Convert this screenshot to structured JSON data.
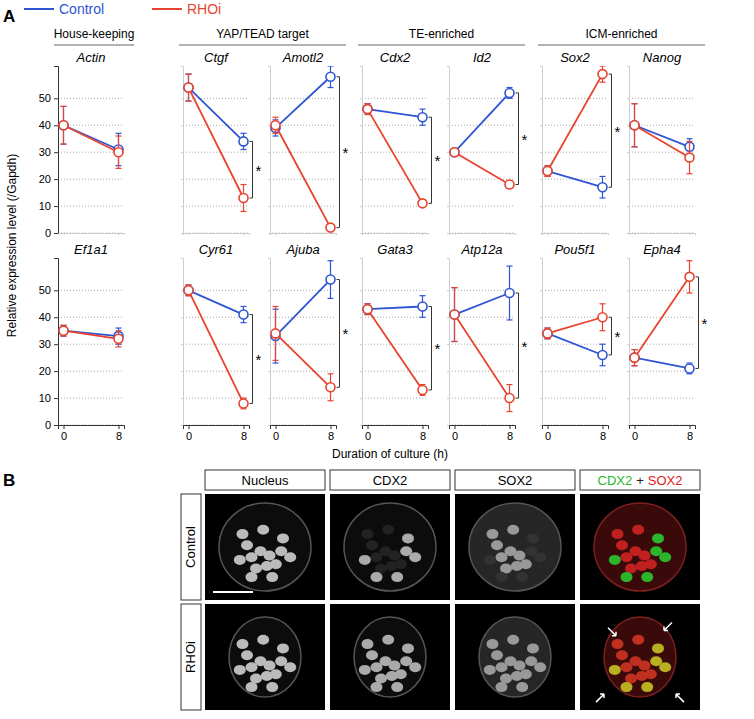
{
  "figure": {
    "panel_labels": [
      "A",
      "B"
    ],
    "y_label": "Relative expression level (/Gapdh)",
    "x_label": "Duration of culture (h)",
    "groups": [
      "House-keeping",
      "YAP/TEAD target",
      "TE-enriched",
      "ICM-enriched"
    ]
  },
  "chart_data": [
    {
      "type": "line",
      "title": "Actin",
      "x": [
        0,
        8
      ],
      "xlim": [
        -0.8,
        8.8
      ],
      "xticks": [
        0,
        8
      ],
      "ylim": [
        0,
        62
      ],
      "yticks": [
        0,
        10,
        20,
        30,
        40,
        50
      ],
      "grid": true,
      "tick_labels": "y",
      "marker": "circle",
      "series": [
        {
          "name": "Control",
          "color": "#2f55d4",
          "values": [
            40,
            31
          ],
          "errors": [
            7,
            6
          ]
        },
        {
          "name": "RHOi",
          "color": "#e8432e",
          "values": [
            40,
            30
          ],
          "errors": [
            7,
            6
          ]
        }
      ]
    },
    {
      "type": "line",
      "title": "Ctgf",
      "x": [
        0,
        8
      ],
      "xlim": [
        -0.8,
        8.8
      ],
      "xticks": [
        0,
        8
      ],
      "ylim": [
        0,
        62
      ],
      "yticks": [
        0,
        10,
        20,
        30,
        40,
        50
      ],
      "grid": true,
      "tick_labels": false,
      "marker": "circle",
      "annotation": "*",
      "series": [
        {
          "name": "Control",
          "color": "#2f55d4",
          "values": [
            54,
            34
          ],
          "errors": [
            5,
            3
          ]
        },
        {
          "name": "RHOi",
          "color": "#e8432e",
          "values": [
            54,
            13
          ],
          "errors": [
            5,
            5
          ]
        }
      ]
    },
    {
      "type": "line",
      "title": "Amotl2",
      "x": [
        0,
        8
      ],
      "xlim": [
        -0.8,
        8.8
      ],
      "xticks": [
        0,
        8
      ],
      "ylim": [
        0,
        62
      ],
      "yticks": [
        0,
        10,
        20,
        30,
        40,
        50
      ],
      "grid": true,
      "tick_labels": false,
      "marker": "circle",
      "annotation": "*",
      "series": [
        {
          "name": "Control",
          "color": "#2f55d4",
          "values": [
            39,
            58
          ],
          "errors": [
            3,
            4
          ]
        },
        {
          "name": "RHOi",
          "color": "#e8432e",
          "values": [
            40,
            2
          ],
          "errors": [
            3,
            1
          ]
        }
      ]
    },
    {
      "type": "line",
      "title": "Cdx2",
      "x": [
        0,
        8
      ],
      "xlim": [
        -0.8,
        8.8
      ],
      "xticks": [
        0,
        8
      ],
      "ylim": [
        0,
        62
      ],
      "yticks": [
        0,
        10,
        20,
        30,
        40,
        50
      ],
      "grid": true,
      "tick_labels": false,
      "marker": "circle",
      "annotation": "*",
      "series": [
        {
          "name": "Control",
          "color": "#2f55d4",
          "values": [
            46,
            43
          ],
          "errors": [
            2,
            3
          ]
        },
        {
          "name": "RHOi",
          "color": "#e8432e",
          "values": [
            46,
            11
          ],
          "errors": [
            2,
            1
          ]
        }
      ]
    },
    {
      "type": "line",
      "title": "Id2",
      "x": [
        0,
        8
      ],
      "xlim": [
        -0.8,
        8.8
      ],
      "xticks": [
        0,
        8
      ],
      "ylim": [
        0,
        62
      ],
      "yticks": [
        0,
        10,
        20,
        30,
        40,
        50
      ],
      "grid": true,
      "tick_labels": false,
      "marker": "circle",
      "annotation": "*",
      "series": [
        {
          "name": "Control",
          "color": "#2f55d4",
          "values": [
            30,
            52
          ],
          "errors": [
            1,
            2
          ]
        },
        {
          "name": "RHOi",
          "color": "#e8432e",
          "values": [
            30,
            18
          ],
          "errors": [
            1,
            1
          ]
        }
      ]
    },
    {
      "type": "line",
      "title": "Sox2",
      "x": [
        0,
        8
      ],
      "xlim": [
        -0.8,
        8.8
      ],
      "xticks": [
        0,
        8
      ],
      "ylim": [
        0,
        62
      ],
      "yticks": [
        0,
        10,
        20,
        30,
        40,
        50
      ],
      "grid": true,
      "tick_labels": false,
      "marker": "circle",
      "annotation": "*",
      "series": [
        {
          "name": "Control",
          "color": "#2f55d4",
          "values": [
            23,
            17
          ],
          "errors": [
            2,
            4
          ]
        },
        {
          "name": "RHOi",
          "color": "#e8432e",
          "values": [
            23,
            59
          ],
          "errors": [
            2,
            3
          ]
        }
      ]
    },
    {
      "type": "line",
      "title": "Nanog",
      "x": [
        0,
        8
      ],
      "xlim": [
        -0.8,
        8.8
      ],
      "xticks": [
        0,
        8
      ],
      "ylim": [
        0,
        62
      ],
      "yticks": [
        0,
        10,
        20,
        30,
        40,
        50
      ],
      "grid": true,
      "tick_labels": false,
      "marker": "circle",
      "series": [
        {
          "name": "Control",
          "color": "#2f55d4",
          "values": [
            40,
            32
          ],
          "errors": [
            8,
            3
          ]
        },
        {
          "name": "RHOi",
          "color": "#e8432e",
          "values": [
            40,
            28
          ],
          "errors": [
            8,
            6
          ]
        }
      ]
    },
    {
      "type": "line",
      "title": "Ef1a1",
      "x": [
        0,
        8
      ],
      "xlim": [
        -0.8,
        8.8
      ],
      "xticks": [
        0,
        8
      ],
      "ylim": [
        0,
        62
      ],
      "yticks": [
        0,
        10,
        20,
        30,
        40,
        50
      ],
      "grid": true,
      "tick_labels": true,
      "marker": "circle",
      "series": [
        {
          "name": "Control",
          "color": "#2f55d4",
          "values": [
            35,
            33
          ],
          "errors": [
            2,
            3
          ]
        },
        {
          "name": "RHOi",
          "color": "#e8432e",
          "values": [
            35,
            32
          ],
          "errors": [
            2,
            3
          ]
        }
      ]
    },
    {
      "type": "line",
      "title": "Cyr61",
      "x": [
        0,
        8
      ],
      "xlim": [
        -0.8,
        8.8
      ],
      "xticks": [
        0,
        8
      ],
      "ylim": [
        0,
        62
      ],
      "yticks": [
        0,
        10,
        20,
        30,
        40,
        50
      ],
      "grid": true,
      "tick_labels": "x",
      "marker": "circle",
      "annotation": "*",
      "series": [
        {
          "name": "Control",
          "color": "#2f55d4",
          "values": [
            50,
            41
          ],
          "errors": [
            2,
            3
          ]
        },
        {
          "name": "RHOi",
          "color": "#e8432e",
          "values": [
            50,
            8
          ],
          "errors": [
            2,
            2
          ]
        }
      ]
    },
    {
      "type": "line",
      "title": "Ajuba",
      "x": [
        0,
        8
      ],
      "xlim": [
        -0.8,
        8.8
      ],
      "xticks": [
        0,
        8
      ],
      "ylim": [
        0,
        62
      ],
      "yticks": [
        0,
        10,
        20,
        30,
        40,
        50
      ],
      "grid": true,
      "tick_labels": "x",
      "marker": "circle",
      "annotation": "*",
      "series": [
        {
          "name": "Control",
          "color": "#2f55d4",
          "values": [
            33,
            54
          ],
          "errors": [
            10,
            7
          ]
        },
        {
          "name": "RHOi",
          "color": "#e8432e",
          "values": [
            34,
            14
          ],
          "errors": [
            10,
            5
          ]
        }
      ]
    },
    {
      "type": "line",
      "title": "Gata3",
      "x": [
        0,
        8
      ],
      "xlim": [
        -0.8,
        8.8
      ],
      "xticks": [
        0,
        8
      ],
      "ylim": [
        0,
        62
      ],
      "yticks": [
        0,
        10,
        20,
        30,
        40,
        50
      ],
      "grid": true,
      "tick_labels": "x",
      "marker": "circle",
      "annotation": "*",
      "series": [
        {
          "name": "Control",
          "color": "#2f55d4",
          "values": [
            43,
            44
          ],
          "errors": [
            2,
            4
          ]
        },
        {
          "name": "RHOi",
          "color": "#e8432e",
          "values": [
            43,
            13
          ],
          "errors": [
            2,
            2
          ]
        }
      ]
    },
    {
      "type": "line",
      "title": "Atp12a",
      "x": [
        0,
        8
      ],
      "xlim": [
        -0.8,
        8.8
      ],
      "xticks": [
        0,
        8
      ],
      "ylim": [
        0,
        62
      ],
      "yticks": [
        0,
        10,
        20,
        30,
        40,
        50
      ],
      "grid": true,
      "tick_labels": "x",
      "marker": "circle",
      "annotation": "*",
      "series": [
        {
          "name": "Control",
          "color": "#2f55d4",
          "values": [
            41,
            49
          ],
          "errors": [
            10,
            10
          ]
        },
        {
          "name": "RHOi",
          "color": "#e8432e",
          "values": [
            41,
            10
          ],
          "errors": [
            10,
            5
          ]
        }
      ]
    },
    {
      "type": "line",
      "title": "Pou5f1",
      "x": [
        0,
        8
      ],
      "xlim": [
        -0.8,
        8.8
      ],
      "xticks": [
        0,
        8
      ],
      "ylim": [
        0,
        62
      ],
      "yticks": [
        0,
        10,
        20,
        30,
        40,
        50
      ],
      "grid": true,
      "tick_labels": "x",
      "marker": "circle",
      "annotation": "*",
      "series": [
        {
          "name": "Control",
          "color": "#2f55d4",
          "values": [
            34,
            26
          ],
          "errors": [
            2,
            4
          ]
        },
        {
          "name": "RHOi",
          "color": "#e8432e",
          "values": [
            34,
            40
          ],
          "errors": [
            2,
            5
          ]
        }
      ]
    },
    {
      "type": "line",
      "title": "Epha4",
      "x": [
        0,
        8
      ],
      "xlim": [
        -0.8,
        8.8
      ],
      "xticks": [
        0,
        8
      ],
      "ylim": [
        0,
        62
      ],
      "yticks": [
        0,
        10,
        20,
        30,
        40,
        50
      ],
      "grid": true,
      "tick_labels": "x",
      "marker": "circle",
      "annotation": "*",
      "series": [
        {
          "name": "Control",
          "color": "#2f55d4",
          "values": [
            25,
            21
          ],
          "errors": [
            3,
            2
          ]
        },
        {
          "name": "RHOi",
          "color": "#e8432e",
          "values": [
            25,
            55
          ],
          "errors": [
            3,
            6
          ]
        }
      ]
    }
  ],
  "images": {
    "columns": [
      "Nucleus",
      "CDX2",
      "SOX2"
    ],
    "merge_columns": [
      "CDX2",
      "+",
      "SOX2"
    ],
    "rows": [
      "Control",
      "RHOi"
    ]
  }
}
